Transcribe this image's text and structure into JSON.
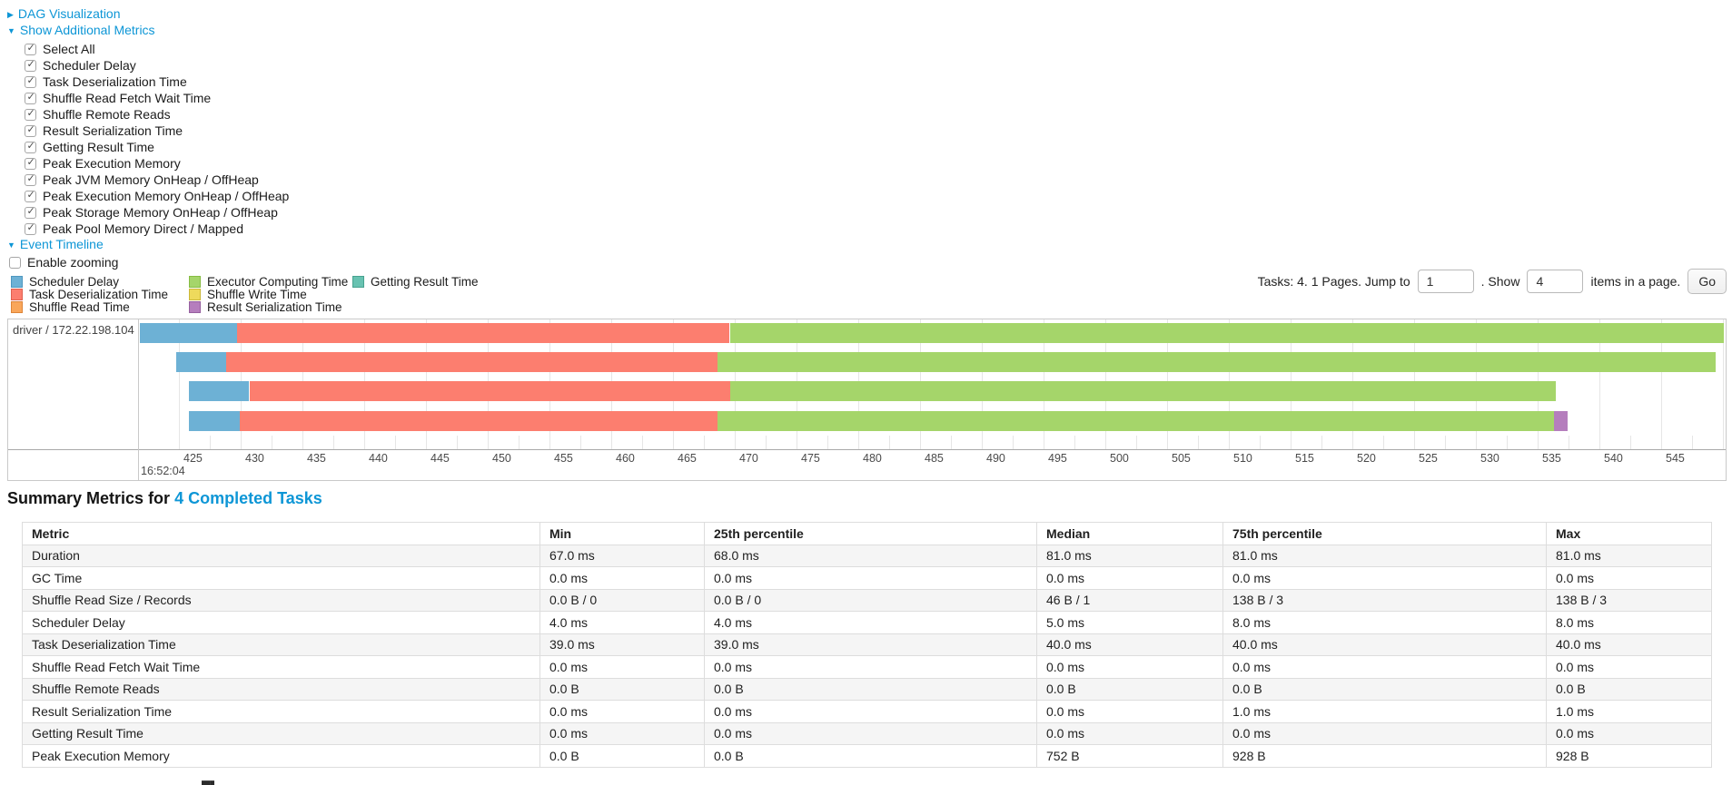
{
  "colors": {
    "link": "#0d96d6",
    "scheduler-delay": {
      "fill": "#6DB1D5",
      "border": "#4E97BF"
    },
    "task-deserialization": {
      "fill": "#FC7E6F",
      "border": "#E0604F"
    },
    "shuffle-read": {
      "fill": "#F9A65A",
      "border": "#DE8438"
    },
    "executor-computing": {
      "fill": "#A5D56A",
      "border": "#86BC42"
    },
    "shuffle-write": {
      "fill": "#EEDA5C",
      "border": "#CBB838"
    },
    "result-serialization": {
      "fill": "#B57EBD",
      "border": "#96609F"
    },
    "getting-result": {
      "fill": "#68C2B1",
      "border": "#47A28F"
    }
  },
  "sections": {
    "dag": {
      "label": "DAG Visualization",
      "state": "collapsed"
    },
    "additional_metrics": {
      "label": "Show Additional Metrics",
      "state": "expanded"
    },
    "event_timeline": {
      "label": "Event Timeline",
      "state": "expanded"
    }
  },
  "metric_checkboxes": [
    {
      "label": "Select All",
      "checked": true
    },
    {
      "label": "Scheduler Delay",
      "checked": true
    },
    {
      "label": "Task Deserialization Time",
      "checked": true
    },
    {
      "label": "Shuffle Read Fetch Wait Time",
      "checked": true
    },
    {
      "label": "Shuffle Remote Reads",
      "checked": true
    },
    {
      "label": "Result Serialization Time",
      "checked": true
    },
    {
      "label": "Getting Result Time",
      "checked": true
    },
    {
      "label": "Peak Execution Memory",
      "checked": true
    },
    {
      "label": "Peak JVM Memory OnHeap / OffHeap",
      "checked": true
    },
    {
      "label": "Peak Execution Memory OnHeap / OffHeap",
      "checked": true
    },
    {
      "label": "Peak Storage Memory OnHeap / OffHeap",
      "checked": true
    },
    {
      "label": "Peak Pool Memory Direct / Mapped",
      "checked": true
    }
  ],
  "zoom_checkbox": {
    "label": "Enable zooming",
    "checked": false
  },
  "legend": {
    "columns": [
      [
        {
          "label": "Scheduler Delay",
          "type": "scheduler-delay"
        },
        {
          "label": "Task Deserialization Time",
          "type": "task-deserialization"
        },
        {
          "label": "Shuffle Read Time",
          "type": "shuffle-read"
        }
      ],
      [
        {
          "label": "Executor Computing Time",
          "type": "executor-computing"
        },
        {
          "label": "Shuffle Write Time",
          "type": "shuffle-write"
        },
        {
          "label": "Result Serialization Time",
          "type": "result-serialization"
        }
      ],
      [
        {
          "label": "Getting Result Time",
          "type": "getting-result"
        }
      ]
    ]
  },
  "pagination": {
    "summary": "Tasks: 4. 1 Pages. Jump to",
    "jump_value": "1",
    "show_label": ". Show",
    "show_value": "4",
    "items_label": "items in a page.",
    "go_label": "Go"
  },
  "event_timeline": {
    "type": "timeline",
    "executor_label": "driver / 172.22.198.104",
    "axis": {
      "tick_start": 425,
      "tick_end": 545,
      "tick_step": 5,
      "clipped_last_tick": "550",
      "major_label": "16:52:04"
    },
    "tasks": [
      {
        "segments": [
          {
            "type": "scheduler-delay",
            "t0": 421.8,
            "t1": 429.7
          },
          {
            "type": "task-deserialization",
            "t0": 429.7,
            "t1": 469.6
          },
          {
            "type": "executor-computing",
            "t0": 469.6,
            "t1": 550.1
          }
        ]
      },
      {
        "segments": [
          {
            "type": "scheduler-delay",
            "t0": 424.8,
            "t1": 428.8
          },
          {
            "type": "task-deserialization",
            "t0": 428.8,
            "t1": 468.6
          },
          {
            "type": "executor-computing",
            "t0": 468.6,
            "t1": 549.4
          }
        ]
      },
      {
        "segments": [
          {
            "type": "scheduler-delay",
            "t0": 425.8,
            "t1": 430.7
          },
          {
            "type": "task-deserialization",
            "t0": 430.7,
            "t1": 469.6
          },
          {
            "type": "executor-computing",
            "t0": 469.6,
            "t1": 536.5
          }
        ]
      },
      {
        "segments": [
          {
            "type": "scheduler-delay",
            "t0": 425.8,
            "t1": 429.9
          },
          {
            "type": "task-deserialization",
            "t0": 429.9,
            "t1": 468.6
          },
          {
            "type": "executor-computing",
            "t0": 468.6,
            "t1": 536.3
          },
          {
            "type": "result-serialization",
            "t0": 536.3,
            "t1": 537.4
          }
        ]
      }
    ]
  },
  "summary": {
    "heading_prefix": "Summary Metrics for",
    "completed_link": "4 Completed Tasks"
  },
  "summary_table": {
    "columns": [
      "Metric",
      "Min",
      "25th percentile",
      "Median",
      "75th percentile",
      "Max"
    ],
    "rows": [
      [
        "Duration",
        "67.0 ms",
        "68.0 ms",
        "81.0 ms",
        "81.0 ms",
        "81.0 ms"
      ],
      [
        "GC Time",
        "0.0 ms",
        "0.0 ms",
        "0.0 ms",
        "0.0 ms",
        "0.0 ms"
      ],
      [
        "Shuffle Read Size / Records",
        "0.0 B / 0",
        "0.0 B / 0",
        "46 B / 1",
        "138 B / 3",
        "138 B / 3"
      ],
      [
        "Scheduler Delay",
        "4.0 ms",
        "4.0 ms",
        "5.0 ms",
        "8.0 ms",
        "8.0 ms"
      ],
      [
        "Task Deserialization Time",
        "39.0 ms",
        "39.0 ms",
        "40.0 ms",
        "40.0 ms",
        "40.0 ms"
      ],
      [
        "Shuffle Read Fetch Wait Time",
        "0.0 ms",
        "0.0 ms",
        "0.0 ms",
        "0.0 ms",
        "0.0 ms"
      ],
      [
        "Shuffle Remote Reads",
        "0.0 B",
        "0.0 B",
        "0.0 B",
        "0.0 B",
        "0.0 B"
      ],
      [
        "Result Serialization Time",
        "0.0 ms",
        "0.0 ms",
        "0.0 ms",
        "1.0 ms",
        "1.0 ms"
      ],
      [
        "Getting Result Time",
        "0.0 ms",
        "0.0 ms",
        "0.0 ms",
        "0.0 ms",
        "0.0 ms"
      ],
      [
        "Peak Execution Memory",
        "0.0 B",
        "0.0 B",
        "752 B",
        "928 B",
        "928 B"
      ]
    ]
  }
}
